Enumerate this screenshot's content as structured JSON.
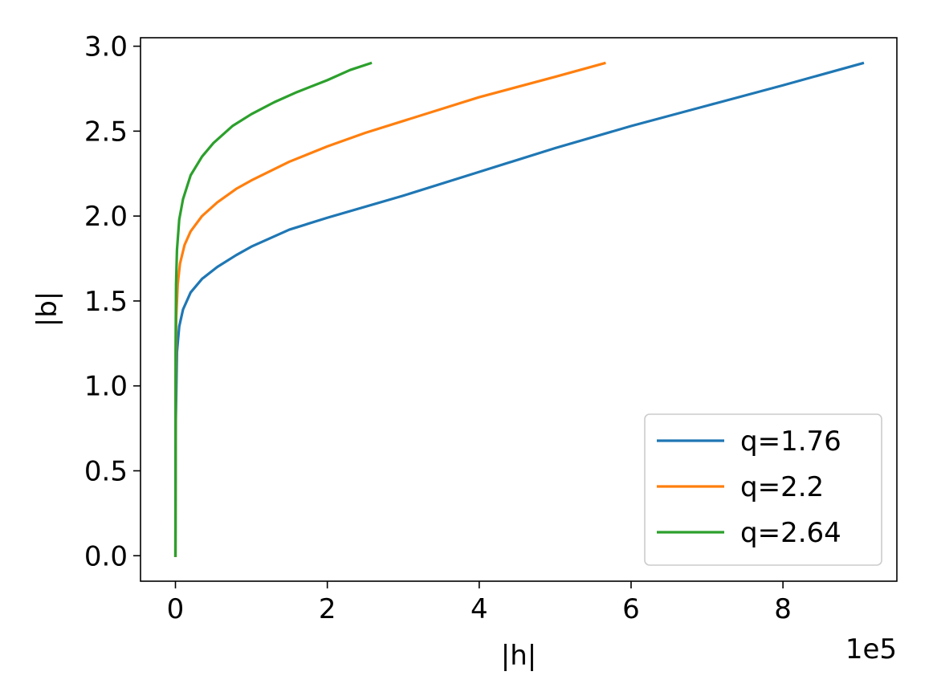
{
  "chart_data": {
    "type": "line",
    "xlabel": "|h|",
    "ylabel": "|b|",
    "x_offset_label": "1e5",
    "xlim": [
      -0.46,
      9.5
    ],
    "ylim": [
      -0.15,
      3.05
    ],
    "x_unit_scale": 100000,
    "xticks": [
      0,
      2,
      4,
      6,
      8
    ],
    "xtick_labels": [
      "0",
      "2",
      "4",
      "6",
      "8"
    ],
    "yticks": [
      0.0,
      0.5,
      1.0,
      1.5,
      2.0,
      2.5,
      3.0
    ],
    "ytick_labels": [
      "0.0",
      "0.5",
      "1.0",
      "1.5",
      "2.0",
      "2.5",
      "3.0"
    ],
    "grid": false,
    "legend_position": "lower right",
    "series": [
      {
        "name": "q=1.76",
        "color": "#1f77b4",
        "x": [
          0,
          0.005,
          0.02,
          0.05,
          0.1,
          0.2,
          0.35,
          0.55,
          0.8,
          1.0,
          1.5,
          2.0,
          3.0,
          4.0,
          5.0,
          6.0,
          7.0,
          8.0,
          9.05
        ],
        "y": [
          0.0,
          0.8,
          1.2,
          1.35,
          1.45,
          1.55,
          1.63,
          1.7,
          1.77,
          1.82,
          1.92,
          1.99,
          2.12,
          2.26,
          2.4,
          2.53,
          2.65,
          2.77,
          2.9
        ]
      },
      {
        "name": "q=2.2",
        "color": "#ff7f0e",
        "x": [
          0,
          0.003,
          0.01,
          0.03,
          0.06,
          0.12,
          0.2,
          0.35,
          0.55,
          0.8,
          1.0,
          1.5,
          2.0,
          2.5,
          3.0,
          4.0,
          5.0,
          5.65
        ],
        "y": [
          0.0,
          1.0,
          1.4,
          1.6,
          1.72,
          1.83,
          1.91,
          2.0,
          2.08,
          2.16,
          2.21,
          2.32,
          2.41,
          2.49,
          2.56,
          2.7,
          2.82,
          2.9
        ]
      },
      {
        "name": "q=2.64",
        "color": "#2ca02c",
        "x": [
          0,
          0.002,
          0.008,
          0.02,
          0.05,
          0.1,
          0.2,
          0.35,
          0.5,
          0.75,
          1.0,
          1.3,
          1.6,
          2.0,
          2.3,
          2.57
        ],
        "y": [
          0.0,
          1.2,
          1.6,
          1.8,
          1.98,
          2.1,
          2.24,
          2.35,
          2.43,
          2.53,
          2.6,
          2.67,
          2.73,
          2.8,
          2.86,
          2.9
        ]
      }
    ]
  }
}
